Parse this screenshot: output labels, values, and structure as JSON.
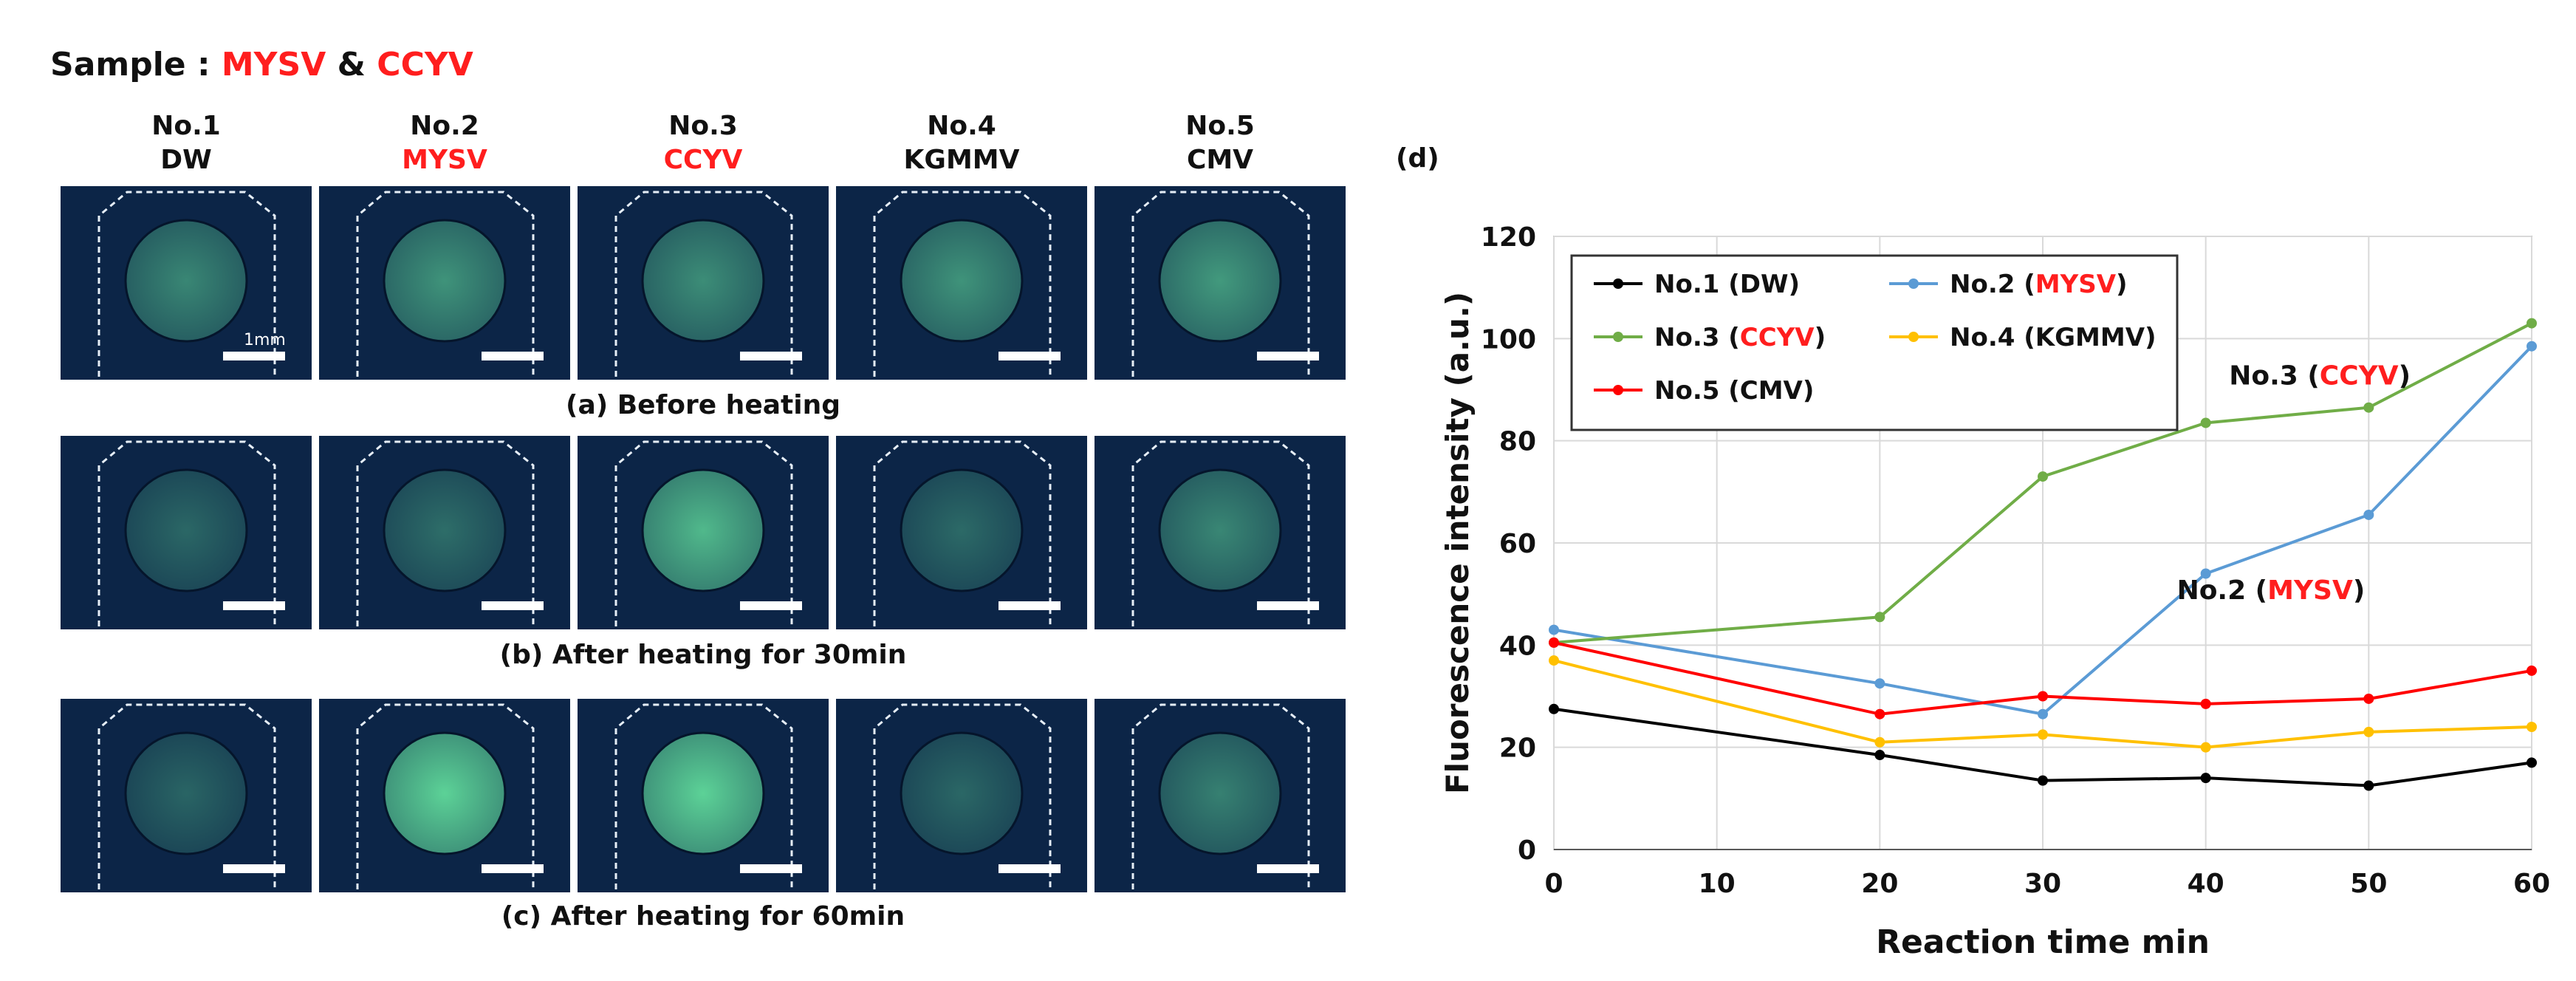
{
  "sample": {
    "prefix": "Sample : ",
    "virus1": "MYSV",
    "amp": " & ",
    "virus2": "CCYV"
  },
  "columns": [
    {
      "num": "No.1",
      "name": "DW",
      "red": false
    },
    {
      "num": "No.2",
      "name": "MYSV",
      "red": true
    },
    {
      "num": "No.3",
      "name": "CCYV",
      "red": true
    },
    {
      "num": "No.4",
      "name": "KGMMV",
      "red": false
    },
    {
      "num": "No.5",
      "name": "CMV",
      "red": false
    }
  ],
  "scale_label": "1mm",
  "rows": [
    {
      "caption": "(a) Before heating",
      "brightness": [
        0.35,
        0.45,
        0.4,
        0.45,
        0.5
      ]
    },
    {
      "caption": "(b) After heating for 30min",
      "brightness": [
        0.1,
        0.15,
        0.75,
        0.12,
        0.35
      ]
    },
    {
      "caption": "(c) After heating for 60min",
      "brightness": [
        0.08,
        0.95,
        0.95,
        0.1,
        0.3
      ]
    }
  ],
  "colors": {
    "tile_bg": "#0c2547",
    "glow": "#5fd89a",
    "red": "#ff1e1e"
  },
  "panel_label": "(d)",
  "chart_data": {
    "type": "line",
    "x": [
      0,
      20,
      30,
      40,
      50,
      60
    ],
    "xlabel": "Reaction time  min",
    "ylabel": "Fluorescence intensity  (a.u.)",
    "xlim": [
      0,
      60
    ],
    "ylim": [
      0,
      120
    ],
    "xticks": [
      0,
      10,
      20,
      30,
      40,
      50,
      60
    ],
    "yticks": [
      0,
      20,
      40,
      60,
      80,
      100,
      120
    ],
    "grid": true,
    "legend_position": "top-left",
    "series": [
      {
        "prefix": "No.1 (",
        "name": "DW",
        "suffix": ")",
        "red_name": false,
        "color": "#000000",
        "values": [
          27.5,
          18.5,
          13.5,
          14,
          12.5,
          17
        ]
      },
      {
        "prefix": "No.2 (",
        "name": "MYSV",
        "suffix": ")",
        "red_name": true,
        "color": "#5b9bd5",
        "values": [
          43,
          32.5,
          26.5,
          54,
          65.5,
          98.5
        ]
      },
      {
        "prefix": "No.3 (",
        "name": "CCYV",
        "suffix": ")",
        "red_name": true,
        "color": "#70ad47",
        "values": [
          40.5,
          45.5,
          73,
          83.5,
          86.5,
          103
        ]
      },
      {
        "prefix": "No.4 (",
        "name": "KGMMV",
        "suffix": ")",
        "red_name": false,
        "color": "#ffc000",
        "values": [
          37,
          21,
          22.5,
          20,
          23,
          24
        ]
      },
      {
        "prefix": "No.5 (",
        "name": "CMV",
        "suffix": ")",
        "red_name": false,
        "color": "#ff0000",
        "values": [
          40.5,
          26.5,
          30,
          28.5,
          29.5,
          35
        ]
      }
    ],
    "annotations": [
      {
        "prefix": "No.3 (",
        "name": "CCYV",
        "suffix": ")",
        "x": 47,
        "y": 91
      },
      {
        "prefix": "No.2 (",
        "name": "MYSV",
        "suffix": ")",
        "x": 44,
        "y": 49
      }
    ]
  }
}
